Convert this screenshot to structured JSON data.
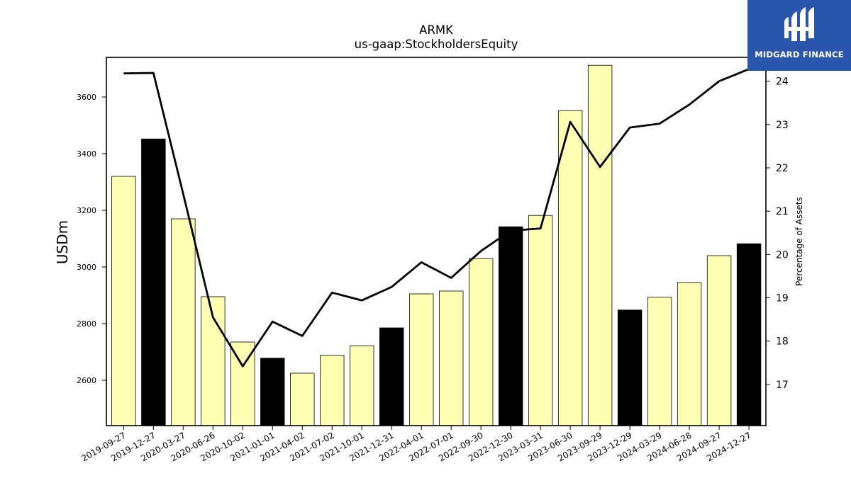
{
  "chart_data": {
    "type": "bar",
    "title": "ARMK",
    "subtitle": "us-gaap:StockholdersEquity",
    "ylabel": "USDm",
    "y2label": "Percentage of Assets",
    "ylim": [
      2440,
      3740
    ],
    "y2lim": [
      16.05,
      24.55
    ],
    "yticks": [
      2600,
      2800,
      3000,
      3200,
      3400,
      3600
    ],
    "y2ticks": [
      17,
      18,
      19,
      20,
      21,
      22,
      23,
      24
    ],
    "categories": [
      "2019-09-27",
      "2019-12-27",
      "2020-03-27",
      "2020-06-26",
      "2020-10-02",
      "2021-01-01",
      "2021-04-02",
      "2021-07-02",
      "2021-10-01",
      "2021-12-31",
      "2022-04-01",
      "2022-07-01",
      "2022-09-30",
      "2022-12-30",
      "2023-03-31",
      "2023-06-30",
      "2023-09-29",
      "2023-12-29",
      "2024-03-29",
      "2024-06-28",
      "2024-09-27",
      "2024-12-27"
    ],
    "series": [
      {
        "kind": "bar",
        "values": [
          3320,
          3452,
          3170,
          2895,
          2735,
          2678,
          2625,
          2688,
          2722,
          2785,
          2905,
          2915,
          3030,
          3142,
          3182,
          3552,
          3712,
          2848,
          2893,
          2945,
          3040,
          3082
        ],
        "highlight": [
          false,
          true,
          false,
          false,
          false,
          true,
          false,
          false,
          false,
          true,
          false,
          false,
          false,
          true,
          false,
          false,
          false,
          true,
          false,
          false,
          false,
          true
        ],
        "color": "#ffffb3",
        "highlight_color": "#000000"
      },
      {
        "kind": "line",
        "axis": "right",
        "values": [
          24.18,
          24.19,
          21.4,
          18.55,
          17.42,
          18.45,
          18.12,
          19.12,
          18.94,
          19.25,
          19.82,
          19.46,
          20.08,
          20.55,
          20.6,
          23.06,
          22.02,
          22.93,
          23.02,
          23.46,
          24.0,
          24.28
        ],
        "color": "#000000"
      }
    ]
  },
  "branding": {
    "name": "MIDGARD FINANCE",
    "bg_color": "#2a56ad"
  }
}
